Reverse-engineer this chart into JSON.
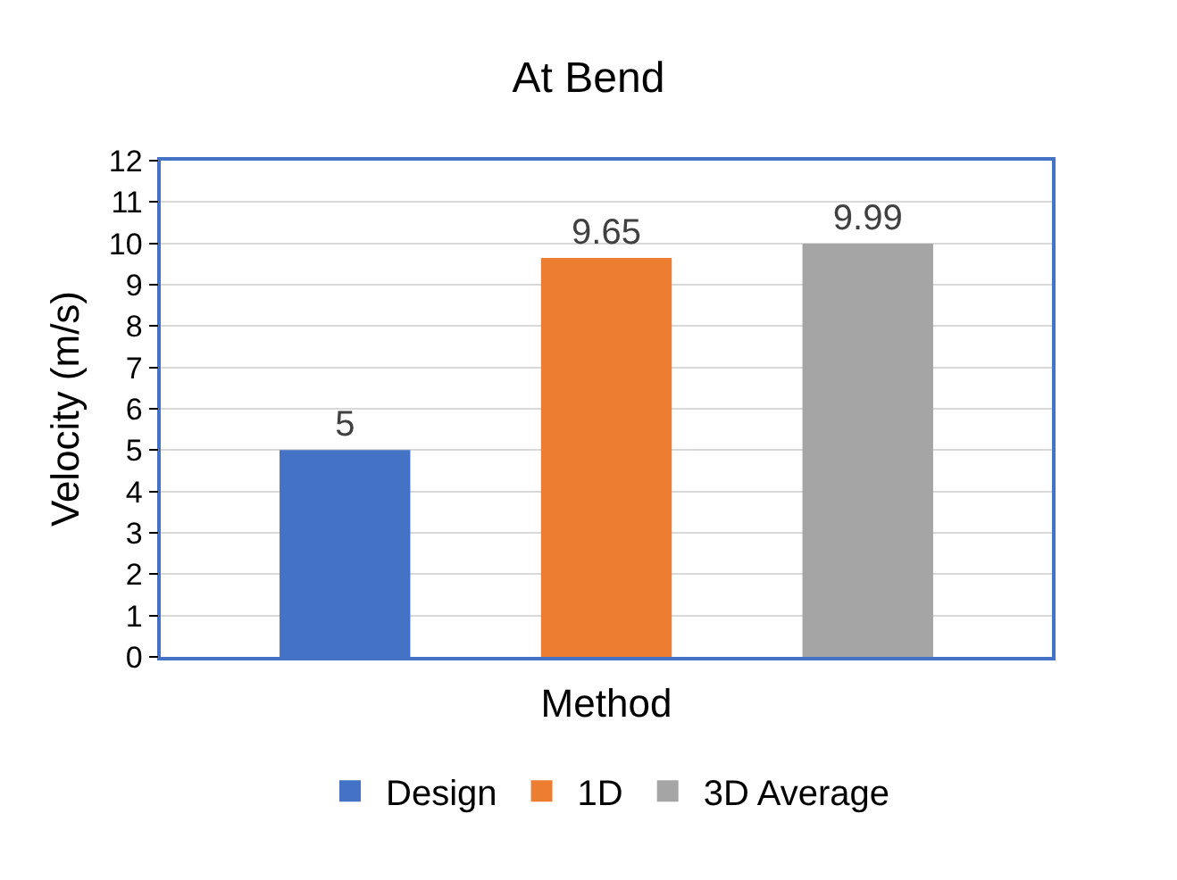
{
  "chart_data": {
    "type": "bar",
    "title": "At Bend",
    "xlabel": "Method",
    "ylabel": "Velocity (m/s)",
    "categories": [
      null
    ],
    "series": [
      {
        "name": "Design",
        "color": "#4472c4",
        "values": [
          5
        ]
      },
      {
        "name": "1D",
        "color": "#ed7d31",
        "values": [
          9.65
        ]
      },
      {
        "name": "3D Average",
        "color": "#a5a5a5",
        "values": [
          9.99
        ]
      }
    ],
    "ylim": [
      0,
      12
    ],
    "yticks": [
      0,
      1,
      2,
      3,
      4,
      5,
      6,
      7,
      8,
      9,
      10,
      11,
      12
    ],
    "grid": "y",
    "legend": "bottom",
    "data_labels": true
  }
}
